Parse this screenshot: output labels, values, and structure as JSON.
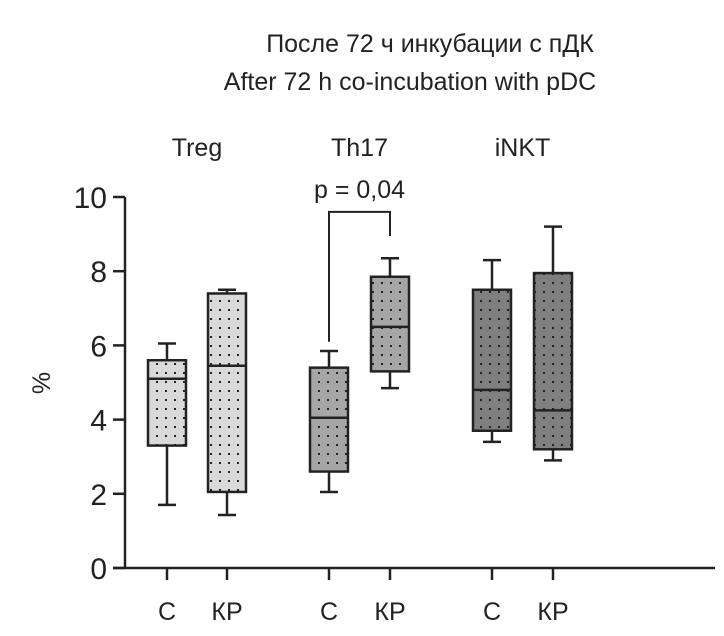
{
  "chart_data": {
    "type": "box",
    "title": "После 72 ч инкубации с пДК",
    "subtitle": "After 72 h co-incubation with pDC",
    "ylabel": "%",
    "ylim": [
      0,
      10
    ],
    "yticks": [
      "0",
      "2",
      "4",
      "6",
      "8",
      "10"
    ],
    "groups": [
      {
        "name": "Treg",
        "color": "#d9d9d9",
        "boxes": [
          {
            "label": "C",
            "min": 1.7,
            "q1": 3.3,
            "median": 5.1,
            "q3": 5.6,
            "max": 6.05
          },
          {
            "label": "КР",
            "min": 1.43,
            "q1": 2.05,
            "median": 5.45,
            "q3": 7.4,
            "max": 7.5
          }
        ]
      },
      {
        "name": "Th17",
        "color": "#a6a6a6",
        "boxes": [
          {
            "label": "C",
            "min": 2.05,
            "q1": 2.6,
            "median": 4.05,
            "q3": 5.4,
            "max": 5.85
          },
          {
            "label": "КР",
            "min": 4.85,
            "q1": 5.3,
            "median": 6.5,
            "q3": 7.85,
            "max": 8.35
          }
        ]
      },
      {
        "name": "iNKT",
        "color": "#7f7f7f",
        "boxes": [
          {
            "label": "C",
            "min": 3.4,
            "q1": 3.7,
            "median": 4.8,
            "q3": 7.5,
            "max": 8.3
          },
          {
            "label": "КР",
            "min": 2.9,
            "q1": 3.2,
            "median": 4.25,
            "q3": 7.95,
            "max": 9.2
          }
        ]
      }
    ],
    "annotation": {
      "text": "p = 0,04",
      "group": "Th17",
      "left_y": 6.1,
      "top_y": 9.6,
      "right_y": 8.95
    }
  }
}
